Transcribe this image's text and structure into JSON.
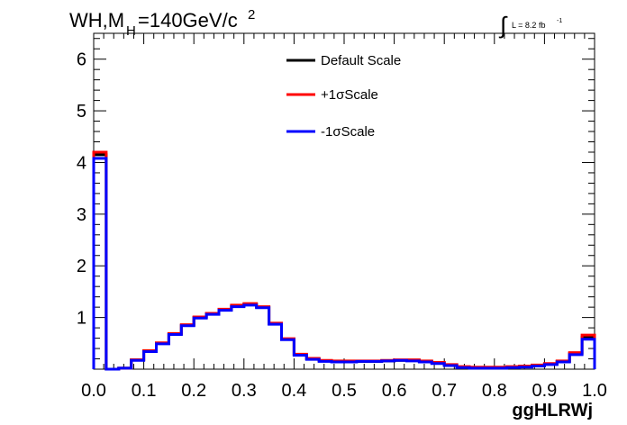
{
  "chart_data": {
    "type": "line",
    "title": {
      "main": "WH,M",
      "sub": "H",
      "rest": "=140GeV/c",
      "sup": "2"
    },
    "lumi": {
      "integral": "∫",
      "text": "L = 8.2 fb",
      "sup": "-1"
    },
    "xlabel": "ggHLRWj",
    "ylabel": "",
    "xlim": [
      0.0,
      1.0
    ],
    "ylim": [
      0.0,
      6.5
    ],
    "xticks": [
      0.0,
      0.1,
      0.2,
      0.3,
      0.4,
      0.5,
      0.6,
      0.7,
      0.8,
      0.9,
      1.0
    ],
    "xtick_labels": [
      "0.0",
      "0.1",
      "0.2",
      "0.3",
      "0.4",
      "0.5",
      "0.6",
      "0.7",
      "0.8",
      "0.9",
      "1.0"
    ],
    "yticks": [
      1,
      2,
      3,
      4,
      5,
      6
    ],
    "ytick_labels": [
      "1",
      "2",
      "3",
      "4",
      "5",
      "6"
    ],
    "bin_edges": [
      0.0,
      0.025,
      0.05,
      0.075,
      0.1,
      0.125,
      0.15,
      0.175,
      0.2,
      0.225,
      0.25,
      0.275,
      0.3,
      0.325,
      0.35,
      0.375,
      0.4,
      0.425,
      0.45,
      0.475,
      0.5,
      0.525,
      0.55,
      0.575,
      0.6,
      0.625,
      0.65,
      0.675,
      0.7,
      0.725,
      0.75,
      0.775,
      0.8,
      0.825,
      0.85,
      0.875,
      0.9,
      0.925,
      0.95,
      0.975,
      1.0
    ],
    "legend_position": "top-center",
    "series": [
      {
        "name": "Default Scale",
        "color": "#000000",
        "values": [
          4.15,
          0.0,
          0.02,
          0.18,
          0.35,
          0.5,
          0.68,
          0.85,
          1.0,
          1.07,
          1.15,
          1.22,
          1.25,
          1.2,
          0.88,
          0.58,
          0.28,
          0.2,
          0.16,
          0.15,
          0.15,
          0.15,
          0.15,
          0.16,
          0.17,
          0.17,
          0.15,
          0.12,
          0.08,
          0.04,
          0.03,
          0.03,
          0.03,
          0.04,
          0.05,
          0.07,
          0.1,
          0.15,
          0.3,
          0.62
        ]
      },
      {
        "name": "+1σScale",
        "color": "#ff0000",
        "values": [
          4.2,
          0.0,
          0.02,
          0.18,
          0.36,
          0.51,
          0.69,
          0.86,
          1.01,
          1.08,
          1.16,
          1.24,
          1.27,
          1.21,
          0.89,
          0.59,
          0.29,
          0.21,
          0.17,
          0.16,
          0.16,
          0.16,
          0.16,
          0.17,
          0.18,
          0.18,
          0.16,
          0.13,
          0.09,
          0.05,
          0.04,
          0.04,
          0.04,
          0.05,
          0.06,
          0.08,
          0.11,
          0.16,
          0.32,
          0.66
        ]
      },
      {
        "name": "-1σScale",
        "color": "#0000ff",
        "values": [
          4.08,
          0.0,
          0.02,
          0.17,
          0.34,
          0.49,
          0.67,
          0.84,
          0.99,
          1.06,
          1.14,
          1.21,
          1.24,
          1.19,
          0.87,
          0.57,
          0.27,
          0.19,
          0.15,
          0.14,
          0.14,
          0.15,
          0.15,
          0.16,
          0.17,
          0.16,
          0.14,
          0.11,
          0.07,
          0.03,
          0.02,
          0.02,
          0.02,
          0.03,
          0.04,
          0.06,
          0.09,
          0.14,
          0.28,
          0.58
        ]
      }
    ]
  }
}
